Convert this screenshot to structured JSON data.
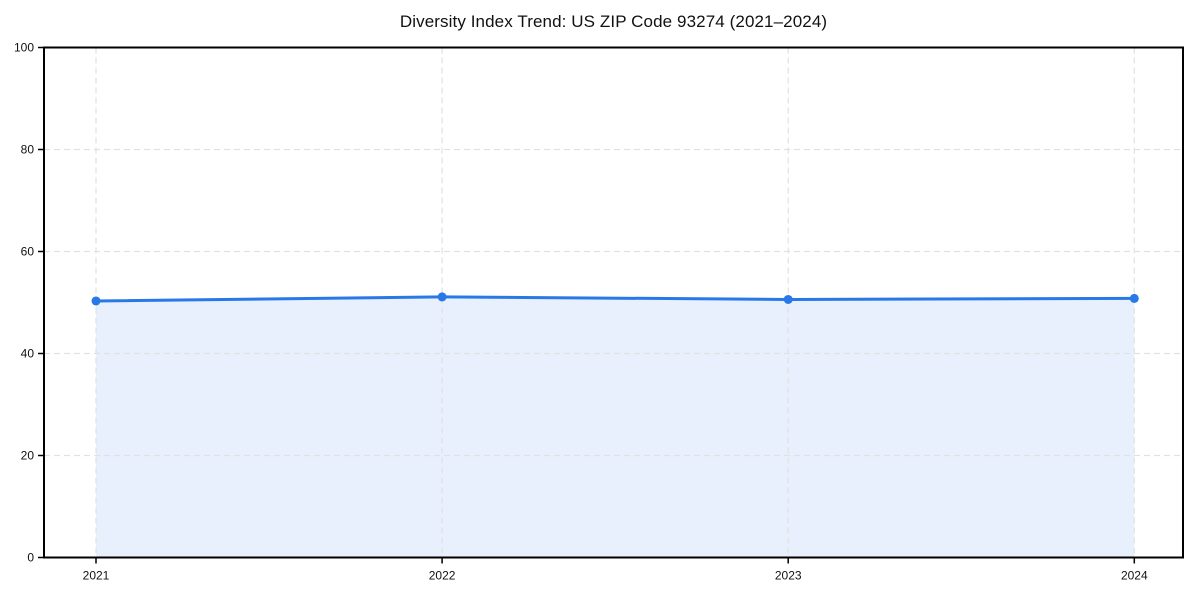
{
  "page": {
    "title": "Diversity Index Trend: US ZIP Code 93274 (2021–2024)"
  },
  "chart_data": {
    "type": "area",
    "title": "Diversity Index Trend: US ZIP Code 93274 (2021–2024)",
    "x": [
      2021,
      2022,
      2023,
      2024
    ],
    "xticks": [
      "2021",
      "2022",
      "2023",
      "2024"
    ],
    "series": [
      {
        "name": "Diversity Index",
        "values": [
          50.3,
          51.1,
          50.6,
          50.8
        ]
      }
    ],
    "xlabel": "",
    "ylabel": "",
    "ylim": [
      0,
      100
    ],
    "yticks": [
      0,
      20,
      40,
      60,
      80,
      100
    ],
    "grid": "dashed",
    "legend": "none",
    "marker": "circle",
    "colors": {
      "line": "#2878e8",
      "fill": "rgba(40,120,232,0.11)",
      "gridline": "#e1e1e1",
      "axis": "#000000",
      "tick_label": "#111111",
      "title": "#111111",
      "background": "#ffffff"
    }
  }
}
